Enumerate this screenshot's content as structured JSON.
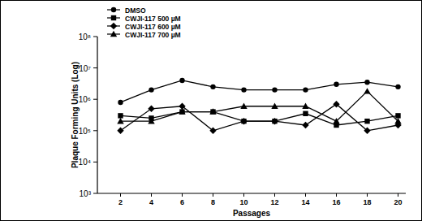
{
  "chart_data": {
    "type": "line",
    "x_label": "Passages",
    "y_label": "Plaque Forming Units (Log)",
    "x": [
      2,
      4,
      6,
      8,
      10,
      12,
      14,
      16,
      18,
      20
    ],
    "series": [
      {
        "name": "DMSO",
        "color": "#000000",
        "marker": "circle",
        "values": [
          800000,
          2000000,
          4000000,
          2500000,
          2000000,
          2000000,
          2000000,
          3000000,
          3500000,
          2500000
        ]
      },
      {
        "name": "CWJI-117 500 µM",
        "color": "#000000",
        "marker": "square",
        "values": [
          300000,
          250000,
          400000,
          400000,
          200000,
          200000,
          350000,
          150000,
          200000,
          300000
        ]
      },
      {
        "name": "CWJI-117 600 µM",
        "color": "#000000",
        "marker": "diamond",
        "values": [
          100000,
          500000,
          600000,
          100000,
          200000,
          200000,
          150000,
          700000,
          100000,
          150000
        ]
      },
      {
        "name": "CWJI-117 700 µM",
        "color": "#000000",
        "marker": "triangle",
        "values": [
          200000,
          200000,
          400000,
          400000,
          600000,
          600000,
          600000,
          200000,
          1800000,
          200000
        ]
      }
    ],
    "xlim": [
      0.5,
      20.5
    ],
    "xticks": [
      2,
      4,
      6,
      8,
      10,
      12,
      14,
      16,
      18,
      20
    ],
    "ylim": [
      1000,
      100000000
    ],
    "yticks": [
      {
        "value": 1000,
        "label": "10³"
      },
      {
        "value": 10000,
        "label": "10⁴"
      },
      {
        "value": 100000,
        "label": "10⁵"
      },
      {
        "value": 1000000,
        "label": "10⁶"
      },
      {
        "value": 10000000,
        "label": "10⁷"
      },
      {
        "value": 100000000,
        "label": "10⁸"
      }
    ],
    "log": "y",
    "grid": false,
    "legend": "top-left"
  }
}
